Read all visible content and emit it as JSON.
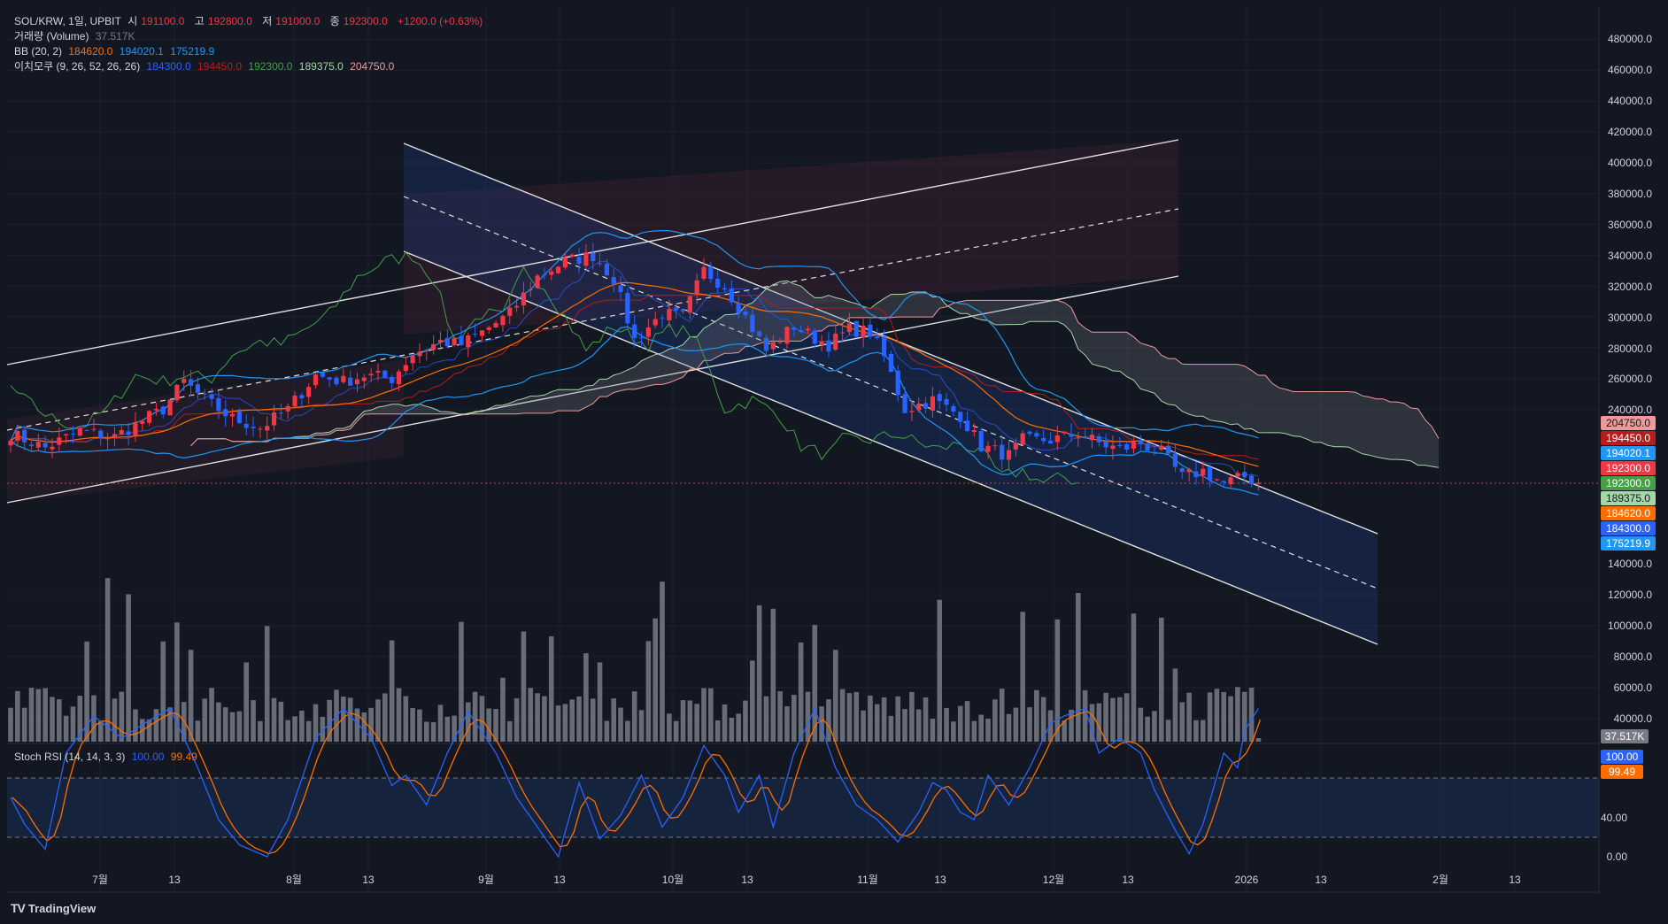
{
  "legend": {
    "main": {
      "symbol": "SOL/KRW, 1일, UPBIT",
      "open_label": "시",
      "open": "191100.0",
      "high_label": "고",
      "high": "192800.0",
      "low_label": "저",
      "low": "191000.0",
      "close_label": "종",
      "close": "192300.0",
      "change": "+1200.0 (+0.63%)"
    },
    "volume": {
      "label": "거래량 (Volume)",
      "value": "37.517K"
    },
    "bb": {
      "label": "BB (20, 2)",
      "v1": "184620.0",
      "v2": "194020.1",
      "v3": "175219.9"
    },
    "ichimoku": {
      "label": "이치모쿠 (9, 26, 52, 26, 26)",
      "v1": "184300.0",
      "v2": "194450.0",
      "v3": "192300.0",
      "v4": "189375.0",
      "v5": "204750.0"
    },
    "stoch": {
      "label": "Stoch RSI (14, 14, 3, 3)",
      "k": "100.00",
      "d": "99.49"
    }
  },
  "footer": {
    "brand": "TradingView"
  },
  "colors": {
    "bg": "#131722",
    "up": "#f23645",
    "down": "#2962ff",
    "grid": "#1e2230",
    "bb_basis": "#ff6d00",
    "bb_band": "#2196f3",
    "conversion": "#2962ff",
    "base": "#b71c1c",
    "lagging": "#43a047",
    "span_a": "#a5d6a7",
    "span_b": "#ef9a9a",
    "stoch_k": "#2962ff",
    "stoch_d": "#ff6d00"
  },
  "chart_data": {
    "type": "candlestick",
    "y_axis": {
      "ticks": [
        "480000.0",
        "460000.0",
        "440000.0",
        "420000.0",
        "400000.0",
        "380000.0",
        "360000.0",
        "340000.0",
        "320000.0",
        "300000.0",
        "280000.0",
        "260000.0",
        "240000.0",
        "140000.0",
        "120000.0",
        "100000.0",
        "80000.0",
        "60000.0",
        "40000.0"
      ]
    },
    "x_axis": {
      "ticks": [
        "7월",
        "13",
        "8월",
        "13",
        "9월",
        "13",
        "10월",
        "13",
        "11월",
        "13",
        "12월",
        "13",
        "2026",
        "13",
        "2월",
        "13"
      ]
    },
    "price_badges": [
      {
        "text": "204750.0",
        "color": "#ef9a9a",
        "text_color": "#131722"
      },
      {
        "text": "194450.0",
        "color": "#b71c1c",
        "text_color": "#ffffff"
      },
      {
        "text": "194020.1",
        "color": "#2196f3",
        "text_color": "#ffffff"
      },
      {
        "text": "192300.0",
        "color": "#f23645",
        "text_color": "#ffffff"
      },
      {
        "text": "192300.0",
        "color": "#43a047",
        "text_color": "#ffffff"
      },
      {
        "text": "189375.0",
        "color": "#a5d6a7",
        "text_color": "#131722"
      },
      {
        "text": "184620.0",
        "color": "#ff6d00",
        "text_color": "#ffffff"
      },
      {
        "text": "184300.0",
        "color": "#2962ff",
        "text_color": "#ffffff"
      },
      {
        "text": "175219.9",
        "color": "#2196f3",
        "text_color": "#ffffff"
      }
    ],
    "volume_badge": "37.517K",
    "stoch_axis": {
      "ticks": [
        "40.00",
        "0.00"
      ]
    },
    "stoch_badges": [
      {
        "text": "100.00",
        "color": "#2962ff"
      },
      {
        "text": "99.49",
        "color": "#ff6d00"
      }
    ],
    "price_anchors": [
      [
        0,
        224000
      ],
      [
        5,
        215000
      ],
      [
        10,
        226000
      ],
      [
        15,
        222000
      ],
      [
        18,
        230000
      ],
      [
        22,
        240000
      ],
      [
        25,
        258000
      ],
      [
        28,
        246000
      ],
      [
        32,
        234000
      ],
      [
        36,
        228000
      ],
      [
        40,
        240000
      ],
      [
        44,
        262000
      ],
      [
        48,
        258000
      ],
      [
        51,
        262000
      ],
      [
        55,
        260000
      ],
      [
        58,
        276000
      ],
      [
        62,
        284000
      ],
      [
        65,
        282000
      ],
      [
        68,
        290000
      ],
      [
        72,
        302000
      ],
      [
        76,
        326000
      ],
      [
        80,
        336000
      ],
      [
        84,
        340000
      ],
      [
        87,
        325000
      ],
      [
        90,
        285000
      ],
      [
        94,
        302000
      ],
      [
        97,
        300000
      ],
      [
        100,
        330000
      ],
      [
        103,
        320000
      ],
      [
        106,
        300000
      ],
      [
        109,
        278000
      ],
      [
        113,
        294000
      ],
      [
        116,
        286000
      ],
      [
        118,
        282000
      ],
      [
        121,
        292000
      ],
      [
        124,
        290000
      ],
      [
        126,
        274000
      ],
      [
        129,
        240000
      ],
      [
        133,
        246000
      ],
      [
        137,
        236000
      ],
      [
        140,
        216000
      ],
      [
        144,
        210000
      ],
      [
        146,
        220000
      ],
      [
        150,
        220000
      ],
      [
        154,
        224000
      ],
      [
        157,
        218000
      ],
      [
        160,
        214000
      ],
      [
        163,
        218000
      ],
      [
        166,
        212000
      ],
      [
        169,
        196000
      ],
      [
        172,
        200000
      ],
      [
        175,
        192000
      ],
      [
        178,
        196000
      ],
      [
        180,
        192300
      ]
    ],
    "stoch_k_anchors": [
      [
        0,
        40
      ],
      [
        2,
        22
      ],
      [
        5,
        5
      ],
      [
        8,
        70
      ],
      [
        12,
        95
      ],
      [
        16,
        80
      ],
      [
        20,
        92
      ],
      [
        23,
        100
      ],
      [
        27,
        60
      ],
      [
        30,
        25
      ],
      [
        33,
        8
      ],
      [
        37,
        0
      ],
      [
        40,
        25
      ],
      [
        44,
        80
      ],
      [
        48,
        100
      ],
      [
        52,
        80
      ],
      [
        55,
        48
      ],
      [
        57,
        55
      ],
      [
        60,
        35
      ],
      [
        63,
        70
      ],
      [
        66,
        98
      ],
      [
        70,
        70
      ],
      [
        73,
        40
      ],
      [
        76,
        20
      ],
      [
        79,
        0
      ],
      [
        82,
        50
      ],
      [
        85,
        12
      ],
      [
        88,
        28
      ],
      [
        91,
        55
      ],
      [
        94,
        20
      ],
      [
        97,
        40
      ],
      [
        100,
        75
      ],
      [
        103,
        55
      ],
      [
        105,
        30
      ],
      [
        108,
        55
      ],
      [
        110,
        20
      ],
      [
        113,
        70
      ],
      [
        116,
        100
      ],
      [
        119,
        60
      ],
      [
        122,
        35
      ],
      [
        125,
        25
      ],
      [
        128,
        10
      ],
      [
        131,
        30
      ],
      [
        133,
        50
      ],
      [
        135,
        45
      ],
      [
        137,
        30
      ],
      [
        139,
        25
      ],
      [
        141,
        55
      ],
      [
        144,
        35
      ],
      [
        147,
        60
      ],
      [
        150,
        90
      ],
      [
        152,
        95
      ],
      [
        155,
        100
      ],
      [
        157,
        70
      ],
      [
        160,
        80
      ],
      [
        163,
        70
      ],
      [
        165,
        45
      ],
      [
        168,
        18
      ],
      [
        170,
        2
      ],
      [
        172,
        22
      ],
      [
        175,
        70
      ],
      [
        177,
        60
      ],
      [
        178,
        85
      ],
      [
        180,
        100
      ]
    ],
    "last_close": 192300
  }
}
